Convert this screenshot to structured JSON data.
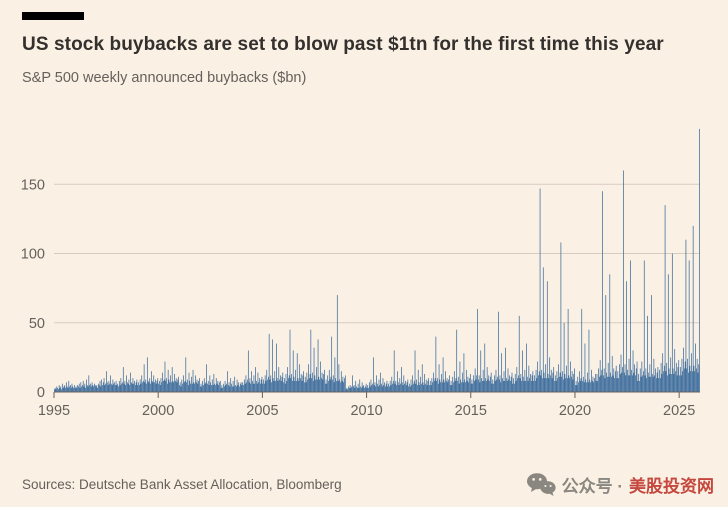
{
  "page": {
    "title": "US stock buybacks are set to blow past $1tn for the first time this year",
    "subtitle": "S&P 500 weekly announced buybacks ($bn)",
    "source": "Sources: Deutsche Bank Asset Allocation, Bloomberg",
    "watermark": {
      "icon": "wechat-icon",
      "label_gray": "公众号 ·",
      "label_red": "美股投资网"
    }
  },
  "colors": {
    "background": "#FAF1E4",
    "bar": "#35679A",
    "grid": "#D8CCBF",
    "axis_line": "#66605C",
    "axis_text": "#66605C",
    "title_text": "#33302E",
    "top_rule": "#000000",
    "watermark_gray": "#8A8680",
    "watermark_red": "#C5483F"
  },
  "chart_data": {
    "type": "bar",
    "title": "US stock buybacks are set to blow past $1tn for the first time this year",
    "subtitle": "S&P 500 weekly announced buybacks ($bn)",
    "ylabel": "$bn",
    "xlabel": "",
    "x_start_year": 1995,
    "x_end_year": 2026,
    "points_per_year": 26,
    "x_tick_labels": [
      "1995",
      "2000",
      "2005",
      "2010",
      "2015",
      "2020",
      "2025"
    ],
    "y_ticks": [
      0,
      50,
      100,
      150
    ],
    "ylim": [
      0,
      195
    ],
    "grid": true,
    "legend": false,
    "values": [
      2,
      3,
      2,
      4,
      3,
      2,
      5,
      3,
      4,
      2,
      6,
      3,
      4,
      5,
      3,
      7,
      4,
      3,
      8,
      4,
      5,
      3,
      6,
      4,
      3,
      5,
      3,
      4,
      3,
      5,
      4,
      6,
      3,
      7,
      4,
      5,
      8,
      4,
      6,
      3,
      9,
      5,
      4,
      12,
      5,
      6,
      4,
      7,
      5,
      4,
      6,
      5,
      4,
      5,
      3,
      6,
      5,
      8,
      4,
      9,
      5,
      7,
      10,
      5,
      6,
      15,
      7,
      5,
      8,
      6,
      12,
      6,
      5,
      9,
      6,
      7,
      5,
      8,
      5,
      6,
      4,
      8,
      5,
      10,
      6,
      7,
      18,
      6,
      8,
      5,
      12,
      7,
      6,
      9,
      5,
      14,
      7,
      6,
      10,
      6,
      8,
      5,
      7,
      9,
      5,
      7,
      5,
      9,
      6,
      12,
      7,
      8,
      20,
      7,
      9,
      6,
      25,
      8,
      7,
      10,
      6,
      15,
      8,
      7,
      12,
      7,
      9,
      6,
      8,
      10,
      6,
      8,
      5,
      10,
      7,
      14,
      8,
      9,
      22,
      8,
      10,
      6,
      16,
      9,
      7,
      12,
      7,
      18,
      8,
      7,
      13,
      8,
      10,
      7,
      9,
      11,
      5,
      7,
      4,
      9,
      6,
      12,
      7,
      8,
      25,
      7,
      9,
      5,
      14,
      8,
      6,
      11,
      6,
      16,
      7,
      6,
      12,
      7,
      9,
      6,
      8,
      10,
      4,
      6,
      4,
      8,
      5,
      10,
      6,
      7,
      20,
      6,
      8,
      5,
      12,
      7,
      5,
      9,
      5,
      13,
      6,
      5,
      10,
      6,
      8,
      5,
      7,
      8,
      3,
      5,
      3,
      6,
      4,
      8,
      5,
      6,
      15,
      5,
      7,
      4,
      10,
      6,
      4,
      8,
      4,
      11,
      5,
      4,
      9,
      5,
      7,
      4,
      6,
      7,
      5,
      7,
      5,
      9,
      6,
      12,
      7,
      9,
      30,
      7,
      10,
      6,
      15,
      8,
      6,
      12,
      6,
      18,
      8,
      6,
      14,
      7,
      10,
      6,
      9,
      11,
      6,
      9,
      6,
      12,
      8,
      16,
      9,
      11,
      42,
      9,
      12,
      7,
      38,
      10,
      8,
      15,
      8,
      35,
      10,
      8,
      18,
      9,
      12,
      8,
      11,
      14,
      7,
      10,
      6,
      13,
      8,
      18,
      10,
      12,
      45,
      10,
      13,
      8,
      30,
      11,
      8,
      16,
      8,
      28,
      10,
      8,
      20,
      10,
      13,
      8,
      12,
      15,
      7,
      11,
      7,
      14,
      9,
      20,
      10,
      13,
      45,
      10,
      14,
      8,
      32,
      12,
      9,
      18,
      9,
      38,
      11,
      9,
      22,
      10,
      14,
      9,
      13,
      16,
      6,
      9,
      6,
      12,
      8,
      16,
      9,
      11,
      40,
      9,
      12,
      7,
      25,
      10,
      8,
      70,
      8,
      20,
      9,
      7,
      15,
      8,
      11,
      7,
      10,
      12,
      2,
      3,
      2,
      4,
      3,
      5,
      3,
      4,
      12,
      4,
      5,
      3,
      8,
      4,
      3,
      6,
      3,
      9,
      4,
      3,
      7,
      4,
      5,
      3,
      4,
      6,
      3,
      5,
      3,
      7,
      4,
      9,
      5,
      6,
      25,
      5,
      7,
      4,
      12,
      6,
      4,
      9,
      5,
      14,
      6,
      4,
      10,
      5,
      7,
      4,
      6,
      8,
      4,
      6,
      4,
      8,
      5,
      11,
      6,
      8,
      30,
      6,
      8,
      5,
      15,
      7,
      5,
      10,
      6,
      18,
      7,
      5,
      12,
      6,
      8,
      5,
      7,
      9,
      4,
      6,
      4,
      9,
      5,
      12,
      6,
      8,
      30,
      6,
      9,
      5,
      16,
      7,
      5,
      11,
      6,
      20,
      7,
      5,
      13,
      6,
      9,
      5,
      8,
      10,
      5,
      8,
      5,
      10,
      7,
      14,
      8,
      10,
      40,
      8,
      10,
      6,
      20,
      9,
      7,
      13,
      7,
      25,
      9,
      7,
      15,
      8,
      10,
      7,
      9,
      12,
      5,
      8,
      5,
      11,
      7,
      15,
      8,
      10,
      45,
      8,
      11,
      6,
      22,
      9,
      7,
      14,
      7,
      28,
      9,
      7,
      16,
      8,
      11,
      7,
      10,
      13,
      6,
      9,
      6,
      12,
      8,
      17,
      9,
      12,
      60,
      9,
      12,
      7,
      30,
      10,
      8,
      16,
      8,
      35,
      10,
      8,
      18,
      9,
      12,
      8,
      11,
      14,
      6,
      9,
      6,
      12,
      8,
      16,
      9,
      11,
      58,
      9,
      12,
      7,
      28,
      10,
      8,
      15,
      8,
      32,
      10,
      8,
      17,
      9,
      12,
      8,
      11,
      14,
      6,
      10,
      6,
      13,
      8,
      18,
      10,
      12,
      55,
      10,
      13,
      8,
      30,
      11,
      8,
      16,
      8,
      35,
      11,
      8,
      19,
      10,
      13,
      8,
      12,
      15,
      8,
      12,
      8,
      16,
      10,
      22,
      12,
      15,
      147,
      12,
      16,
      10,
      90,
      14,
      10,
      20,
      10,
      80,
      13,
      10,
      25,
      12,
      16,
      10,
      14,
      18,
      8,
      12,
      8,
      15,
      10,
      20,
      11,
      14,
      108,
      11,
      15,
      9,
      50,
      13,
      10,
      19,
      10,
      60,
      12,
      10,
      22,
      11,
      15,
      9,
      13,
      17,
      5,
      8,
      5,
      11,
      7,
      15,
      8,
      10,
      60,
      8,
      11,
      7,
      35,
      9,
      7,
      14,
      7,
      45,
      9,
      7,
      16,
      8,
      11,
      7,
      10,
      13,
      8,
      13,
      8,
      17,
      11,
      23,
      12,
      16,
      145,
      12,
      17,
      10,
      70,
      14,
      11,
      21,
      11,
      85,
      14,
      11,
      26,
      12,
      17,
      10,
      15,
      19,
      10,
      15,
      10,
      20,
      13,
      27,
      14,
      18,
      160,
      14,
      20,
      12,
      80,
      16,
      12,
      24,
      12,
      95,
      16,
      12,
      30,
      14,
      20,
      12,
      17,
      22,
      8,
      13,
      8,
      17,
      11,
      22,
      12,
      15,
      95,
      12,
      17,
      10,
      55,
      14,
      11,
      20,
      11,
      70,
      13,
      11,
      24,
      12,
      17,
      10,
      14,
      18,
      10,
      16,
      10,
      21,
      13,
      28,
      15,
      19,
      135,
      15,
      21,
      12,
      85,
      17,
      13,
      25,
      13,
      100,
      17,
      13,
      31,
      15,
      21,
      12,
      18,
      23,
      12,
      18,
      12,
      24,
      15,
      32,
      17,
      22,
      110,
      17,
      24,
      14,
      95,
      19,
      15,
      28,
      15,
      120,
      19,
      15,
      35,
      17,
      24,
      14,
      20,
      190
    ]
  }
}
